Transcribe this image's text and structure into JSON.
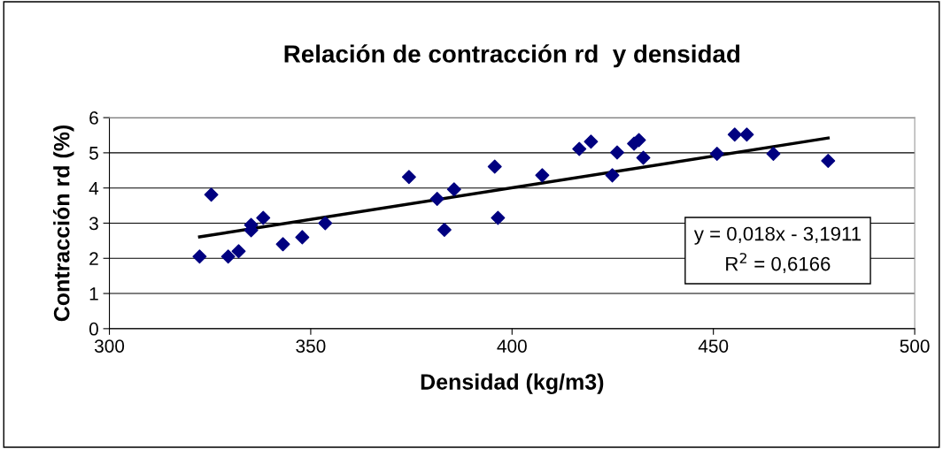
{
  "chart_data": {
    "type": "scatter",
    "title": "Relación de contracción rd  y densidad",
    "xlabel": "Densidad (kg/m3)",
    "ylabel": "Contracción rd (%)",
    "xlim": [
      300,
      500
    ],
    "xticks": [
      300,
      350,
      400,
      450,
      500
    ],
    "ylim": [
      0,
      6
    ],
    "yticks": [
      0,
      1,
      2,
      3,
      4,
      5,
      6
    ],
    "grid": "y",
    "legend": false,
    "series": [
      {
        "color": "#000080",
        "marker": "diamond",
        "x": [
          322.4,
          325.3,
          329.5,
          332.1,
          335.2,
          335.2,
          338.2,
          343.1,
          347.9,
          353.6,
          374.4,
          381.4,
          383.2,
          385.6,
          395.7,
          396.5,
          407.5,
          416.7,
          419.6,
          424.9,
          426.1,
          430.3,
          431.5,
          432.6,
          450.9,
          455.3,
          458.3,
          464.9,
          478.5
        ],
        "values": [
          2.05,
          3.81,
          2.05,
          2.2,
          2.95,
          2.8,
          3.15,
          2.4,
          2.6,
          3.0,
          4.31,
          3.69,
          2.81,
          3.96,
          4.61,
          3.15,
          4.36,
          5.11,
          5.32,
          4.36,
          5.01,
          5.26,
          5.36,
          4.86,
          4.97,
          5.52,
          5.52,
          4.97,
          4.77
        ]
      },
      {
        "type": "line",
        "color": "#000000",
        "marker": "none",
        "line_style": "solid",
        "x": [
          322.4,
          478.5
        ],
        "values": [
          2.61,
          5.42
        ]
      }
    ],
    "annotations": [
      "y = 0,018x - 3,1911\nR$^{2}$ = 0,6166"
    ]
  }
}
